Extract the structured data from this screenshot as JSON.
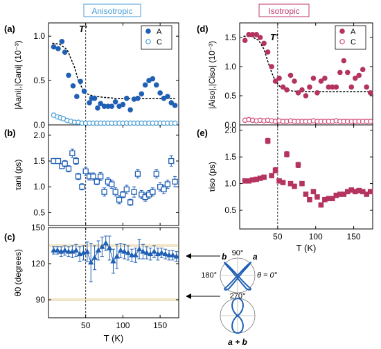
{
  "colors": {
    "blue": "#1f5fb4",
    "blueLight": "#4a9ed6",
    "magenta": "#b4345e",
    "magentaLight": "#d04a7c",
    "band": "#f3e6c8"
  },
  "headers": {
    "anisotropic": "Anisotropic",
    "isotropic": "Isotropic"
  },
  "panel_labels": {
    "a": "(a)",
    "b": "(b)",
    "c": "(c)",
    "d": "(d)",
    "e": "(e)"
  },
  "tprime": "T'",
  "polar": {
    "top_label": "90°",
    "left_label": "180°",
    "right_label": "θ = 0°",
    "bottom_label": "270°",
    "b_label": "b",
    "a_label": "a",
    "sum_label": "a + b"
  },
  "chart_data": [
    {
      "id": "a",
      "type": "scatter",
      "ylabel": "|Aani|,|Cani| (10⁻³)",
      "ylim": [
        0,
        1.15
      ],
      "yticks": [
        0,
        0.5,
        1.0
      ],
      "ytick_labels": [
        "0.0",
        "0.5",
        "1.0"
      ],
      "xlim": [
        0,
        175
      ],
      "xticks": [
        50,
        100,
        150
      ],
      "legend": [
        "A",
        "C"
      ],
      "series": [
        {
          "name": "A",
          "marker": "filled",
          "x": [
            7,
            13,
            18,
            22,
            27,
            33,
            38,
            43,
            48,
            55,
            58,
            62,
            66,
            70,
            75,
            80,
            85,
            90,
            95,
            100,
            105,
            110,
            115,
            120,
            125,
            130,
            135,
            140,
            145,
            150,
            155,
            160,
            165,
            170
          ],
          "y": [
            0.88,
            0.86,
            0.94,
            0.82,
            0.56,
            0.44,
            0.32,
            0.49,
            0.38,
            0.25,
            0.3,
            0.3,
            0.19,
            0.24,
            0.21,
            0.21,
            0.21,
            0.26,
            0.21,
            0.23,
            0.3,
            0.17,
            0.29,
            0.3,
            0.35,
            0.45,
            0.5,
            0.52,
            0.45,
            0.36,
            0.3,
            0.32,
            0.25,
            0.22
          ]
        },
        {
          "name": "C",
          "marker": "open",
          "x": [
            7,
            12,
            16,
            20,
            25,
            30,
            35,
            40,
            45,
            50,
            55,
            60,
            65,
            70,
            75,
            80,
            85,
            90,
            95,
            100,
            105,
            110,
            115,
            120,
            125,
            130,
            135,
            140,
            145,
            150,
            155,
            160,
            165,
            170
          ],
          "y": [
            0.11,
            0.09,
            0.08,
            0.07,
            0.05,
            0.04,
            0.03,
            0.03,
            0.02,
            0.02,
            0.02,
            0.02,
            0.02,
            0.02,
            0.02,
            0.02,
            0.02,
            0.02,
            0.02,
            0.02,
            0.02,
            0.02,
            0.02,
            0.02,
            0.02,
            0.02,
            0.02,
            0.02,
            0.02,
            0.02,
            0.02,
            0.02,
            0.02,
            0.02
          ]
        }
      ],
      "fit": {
        "x": [
          5,
          15,
          25,
          35,
          40,
          45,
          48,
          52,
          58,
          65,
          75,
          90,
          110,
          130,
          150,
          170
        ],
        "y": [
          0.92,
          0.91,
          0.85,
          0.65,
          0.5,
          0.42,
          0.38,
          0.35,
          0.33,
          0.32,
          0.31,
          0.3,
          0.3,
          0.3,
          0.3,
          0.3
        ]
      }
    },
    {
      "id": "b",
      "type": "scatter",
      "ylabel": "τani (ps)",
      "ylim": [
        0.25,
        2.2
      ],
      "yticks": [
        0.5,
        1.0,
        1.5,
        2.0
      ],
      "ytick_labels": [
        "0.5",
        "1.0",
        "1.5",
        "2.0"
      ],
      "xlim": [
        0,
        175
      ],
      "xticks": [
        50,
        100,
        150
      ],
      "series": [
        {
          "name": "tau_ani",
          "marker": "open-square",
          "x": [
            7,
            13,
            18,
            22,
            27,
            32,
            37,
            40,
            45,
            50,
            55,
            60,
            65,
            70,
            75,
            80,
            85,
            90,
            95,
            100,
            105,
            110,
            115,
            120,
            125,
            130,
            135,
            140,
            145,
            150,
            155,
            160,
            165,
            170
          ],
          "y": [
            1.5,
            1.5,
            1.4,
            1.45,
            1.35,
            1.65,
            1.5,
            1.2,
            1.0,
            1.3,
            1.2,
            1.2,
            1.1,
            1.2,
            0.9,
            1.1,
            1.05,
            0.9,
            0.75,
            0.85,
            0.95,
            0.7,
            0.9,
            1.25,
            0.85,
            0.8,
            0.85,
            0.9,
            1.25,
            1.0,
            0.95,
            1.05,
            1.5,
            1.1
          ],
          "err": [
            0.05,
            0.05,
            0.05,
            0.06,
            0.06,
            0.08,
            0.07,
            0.06,
            0.06,
            0.08,
            0.07,
            0.07,
            0.06,
            0.08,
            0.08,
            0.08,
            0.08,
            0.08,
            0.08,
            0.06,
            0.08,
            0.06,
            0.1,
            0.08,
            0.08,
            0.08,
            0.08,
            0.08,
            0.08,
            0.08,
            0.08,
            0.08,
            0.1,
            0.1
          ]
        }
      ]
    },
    {
      "id": "c",
      "type": "scatter",
      "xlabel": "T (K)",
      "ylabel": "θ0 (degrees)",
      "ylim": [
        75,
        150
      ],
      "yticks": [
        90,
        120,
        150
      ],
      "ytick_labels": [
        "90",
        "120",
        "150"
      ],
      "xlim": [
        0,
        175
      ],
      "xticks": [
        50,
        100,
        150
      ],
      "bands": [
        135,
        90
      ],
      "series": [
        {
          "name": "theta0",
          "marker": "triangle",
          "x": [
            7,
            12,
            17,
            22,
            27,
            32,
            37,
            42,
            47,
            52,
            57,
            62,
            67,
            72,
            77,
            82,
            87,
            92,
            97,
            102,
            107,
            112,
            117,
            122,
            127,
            132,
            137,
            142,
            147,
            152,
            157,
            162,
            167,
            172
          ],
          "y": [
            131,
            131,
            130,
            131,
            130,
            130,
            131,
            128,
            129,
            130,
            121,
            125,
            131,
            134,
            137,
            133,
            122,
            126,
            131,
            130,
            129,
            127,
            127,
            132,
            130,
            129,
            128,
            130,
            128,
            129,
            128,
            127,
            127,
            126
          ],
          "err": [
            3,
            3,
            4,
            4,
            4,
            5,
            5,
            6,
            6,
            8,
            16,
            10,
            8,
            8,
            6,
            10,
            10,
            10,
            6,
            6,
            6,
            5,
            6,
            8,
            6,
            5,
            5,
            5,
            5,
            4,
            4,
            4,
            4,
            4
          ]
        }
      ]
    },
    {
      "id": "d",
      "type": "scatter",
      "ylabel": "|Aiso|,|Ciso| (10⁻³)",
      "ylim": [
        0,
        1.75
      ],
      "yticks": [
        0,
        0.5,
        1.0,
        1.5
      ],
      "ytick_labels": [
        "0.0",
        "0.5",
        "1.0",
        "1.5"
      ],
      "xlim": [
        0,
        175
      ],
      "xticks": [
        50,
        100,
        150
      ],
      "legend": [
        "A",
        "C"
      ],
      "series": [
        {
          "name": "A",
          "marker": "filled",
          "x": [
            7,
            12,
            17,
            22,
            27,
            32,
            37,
            42,
            47,
            52,
            57,
            62,
            67,
            72,
            77,
            82,
            87,
            92,
            97,
            102,
            107,
            112,
            117,
            122,
            127,
            132,
            137,
            142,
            147,
            152,
            157,
            162,
            167,
            172
          ],
          "y": [
            1.45,
            1.55,
            1.55,
            1.55,
            1.5,
            1.4,
            1.25,
            1.0,
            0.75,
            0.8,
            0.65,
            0.6,
            0.85,
            0.75,
            0.55,
            0.6,
            0.5,
            0.65,
            0.8,
            0.55,
            0.75,
            0.8,
            0.65,
            0.65,
            0.65,
            0.9,
            1.1,
            0.9,
            0.65,
            0.8,
            0.85,
            0.95,
            0.65,
            0.55
          ]
        },
        {
          "name": "C",
          "marker": "open",
          "x": [
            7,
            12,
            17,
            22,
            27,
            32,
            37,
            42,
            47,
            52,
            57,
            62,
            67,
            72,
            77,
            82,
            87,
            92,
            97,
            102,
            107,
            112,
            117,
            122,
            127,
            132,
            137,
            142,
            147,
            152,
            157,
            162,
            167,
            172
          ],
          "y": [
            0.08,
            0.09,
            0.08,
            0.07,
            0.08,
            0.07,
            0.08,
            0.07,
            0.06,
            0.07,
            0.06,
            0.06,
            0.07,
            0.06,
            0.06,
            0.06,
            0.06,
            0.06,
            0.07,
            0.06,
            0.06,
            0.06,
            0.06,
            0.06,
            0.07,
            0.06,
            0.06,
            0.06,
            0.06,
            0.06,
            0.06,
            0.06,
            0.06,
            0.06
          ]
        }
      ],
      "fit": {
        "x": [
          5,
          15,
          25,
          32,
          38,
          42,
          46,
          50,
          55,
          62,
          70,
          85,
          110,
          140,
          170
        ],
        "y": [
          1.52,
          1.52,
          1.45,
          1.3,
          1.05,
          0.9,
          0.78,
          0.7,
          0.63,
          0.6,
          0.58,
          0.57,
          0.57,
          0.57,
          0.57
        ]
      }
    },
    {
      "id": "e",
      "type": "scatter",
      "xlabel": "T (K)",
      "ylabel": "τiso (ps)",
      "ylim": [
        0.15,
        2.1
      ],
      "yticks": [
        0.5,
        1.0,
        1.5,
        2.0
      ],
      "ytick_labels": [
        "0.5",
        "1.0",
        "1.5",
        "2.0"
      ],
      "xlim": [
        0,
        175
      ],
      "xticks": [
        50,
        100,
        150
      ],
      "series": [
        {
          "name": "tau_iso",
          "marker": "filled-square",
          "x": [
            7,
            12,
            17,
            22,
            27,
            32,
            37,
            42,
            47,
            52,
            57,
            62,
            67,
            72,
            77,
            82,
            87,
            92,
            97,
            102,
            107,
            112,
            117,
            122,
            127,
            132,
            137,
            142,
            147,
            152,
            157,
            162,
            167,
            172
          ],
          "y": [
            1.05,
            1.05,
            1.07,
            1.08,
            1.1,
            1.12,
            1.8,
            1.15,
            1.25,
            1.05,
            1.02,
            1.55,
            1.0,
            0.95,
            1.35,
            1.0,
            0.8,
            0.7,
            0.85,
            0.75,
            0.6,
            0.7,
            0.72,
            0.72,
            0.78,
            0.8,
            0.8,
            0.85,
            0.88,
            0.85,
            0.87,
            0.85,
            0.8,
            0.85
          ],
          "err": [
            0.03,
            0.03,
            0.03,
            0.03,
            0.03,
            0.03,
            0.05,
            0.03,
            0.05,
            0.03,
            0.03,
            0.05,
            0.03,
            0.03,
            0.05,
            0.03,
            0.03,
            0.03,
            0.04,
            0.03,
            0.03,
            0.03,
            0.03,
            0.03,
            0.03,
            0.03,
            0.03,
            0.03,
            0.03,
            0.03,
            0.03,
            0.03,
            0.03,
            0.03
          ]
        }
      ]
    }
  ]
}
